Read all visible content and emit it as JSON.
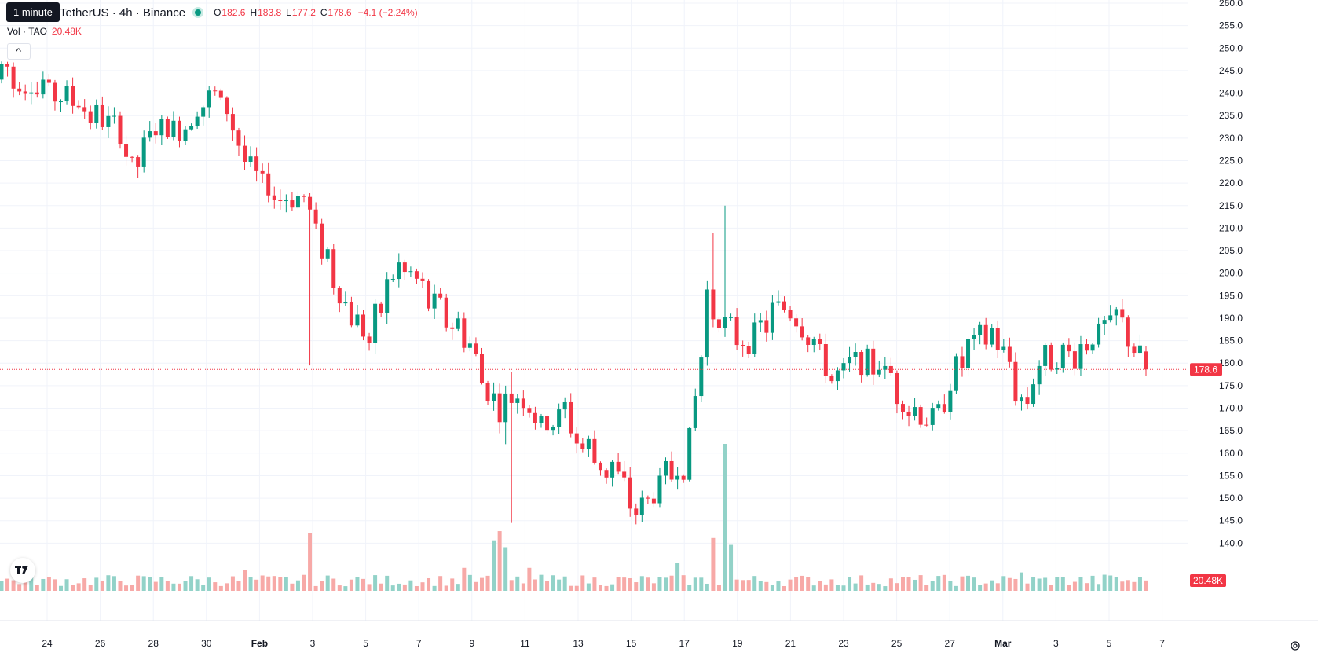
{
  "legend": {
    "tooltip": "1 minute",
    "symbol": "TetherUS · 4h · Binance",
    "o_label": "O",
    "o_value": "182.6",
    "h_label": "H",
    "h_value": "183.8",
    "l_label": "L",
    "l_value": "177.2",
    "c_label": "C",
    "c_value": "178.6",
    "change": "−4.1 (−2.24%)"
  },
  "volume_legend": {
    "label": "Vol · TAO",
    "value": "20.48K"
  },
  "icons": {
    "collapse": "chevron-up-icon",
    "logo": "tradingview-logo",
    "settings": "gear-icon"
  },
  "colors": {
    "up": "#089981",
    "down": "#f23645",
    "vol_up": "#92d2c8",
    "vol_down": "#f7a9a7",
    "grid": "#f0f3fa",
    "axis_text": "#131722"
  },
  "chart_data": {
    "type": "candlestick",
    "interval": "4h",
    "y_ticks": [
      "260.0",
      "255.0",
      "250.0",
      "245.0",
      "240.0",
      "235.0",
      "230.0",
      "225.0",
      "220.0",
      "215.0",
      "210.0",
      "205.0",
      "200.0",
      "195.0",
      "190.0",
      "185.0",
      "180.0",
      "175.0",
      "170.0",
      "165.0",
      "160.0",
      "155.0",
      "150.0",
      "145.0",
      "140.0"
    ],
    "ylim": [
      135,
      260
    ],
    "x_ticks": [
      "24",
      "26",
      "28",
      "30",
      "Feb",
      "3",
      "5",
      "7",
      "9",
      "11",
      "13",
      "15",
      "17",
      "19",
      "21",
      "23",
      "25",
      "27",
      "Mar",
      "3",
      "5",
      "7"
    ],
    "last_price_label": "178.6",
    "last_price": 178.6,
    "last_volume_label": "20.48K",
    "volume_peak": 64,
    "anchors": [
      [
        0,
        243,
        245.7
      ],
      [
        6,
        238.5,
        244
      ],
      [
        12,
        238,
        241
      ],
      [
        20,
        233,
        229
      ],
      [
        22,
        222,
        226
      ],
      [
        26,
        234,
        230
      ],
      [
        30,
        233,
        230
      ],
      [
        34,
        237,
        241
      ],
      [
        38,
        238,
        236
      ],
      [
        40,
        232,
        229
      ],
      [
        43,
        220,
        221
      ],
      [
        49,
        217,
        217
      ],
      [
        52,
        213,
        212
      ],
      [
        55,
        205,
        200
      ],
      [
        58,
        190,
        193
      ],
      [
        62,
        188,
        186
      ],
      [
        66,
        201,
        200
      ],
      [
        70,
        196,
        197
      ],
      [
        74,
        193,
        192
      ],
      [
        78,
        186,
        185
      ],
      [
        82,
        176,
        172
      ],
      [
        84,
        167,
        170
      ],
      [
        87,
        174,
        175
      ],
      [
        91,
        165,
        167
      ],
      [
        95,
        168,
        169
      ],
      [
        99,
        161,
        160
      ],
      [
        103,
        156,
        156
      ],
      [
        106,
        150,
        149
      ],
      [
        109,
        147,
        149
      ],
      [
        112,
        157,
        156
      ],
      [
        115,
        158,
        155
      ],
      [
        117,
        167,
        175
      ],
      [
        119,
        192,
        198
      ],
      [
        122,
        187,
        189
      ],
      [
        126,
        184,
        186
      ],
      [
        129,
        188,
        190
      ],
      [
        132,
        196,
        192
      ],
      [
        136,
        185,
        186
      ],
      [
        139,
        180,
        179
      ],
      [
        141,
        176,
        176
      ],
      [
        144,
        180,
        181
      ],
      [
        148,
        181,
        179
      ],
      [
        151,
        175,
        172
      ],
      [
        154,
        168,
        168
      ],
      [
        158,
        167,
        170
      ],
      [
        161,
        178,
        181
      ],
      [
        165,
        186,
        186
      ],
      [
        168,
        187,
        182
      ],
      [
        170,
        178,
        177
      ],
      [
        172,
        172,
        168
      ],
      [
        175,
        180,
        183
      ],
      [
        178,
        183,
        180
      ],
      [
        181,
        181,
        180
      ],
      [
        184,
        188,
        185
      ],
      [
        186,
        187,
        188
      ],
      [
        188,
        190,
        189
      ],
      [
        191,
        185,
        183
      ],
      [
        193,
        180,
        179
      ]
    ],
    "volume_spikes": [
      [
        41,
        9
      ],
      [
        52,
        25
      ],
      [
        78,
        10
      ],
      [
        83,
        22
      ],
      [
        84,
        26
      ],
      [
        85,
        19
      ],
      [
        89,
        10
      ],
      [
        114,
        12
      ],
      [
        120,
        23
      ],
      [
        122,
        64
      ],
      [
        123,
        20
      ],
      [
        172,
        8
      ],
      [
        186,
        7
      ]
    ],
    "shadow_spikes": [
      [
        52,
        204,
        179.5
      ],
      [
        85,
        175,
        162
      ],
      [
        86,
        178,
        144.5
      ],
      [
        120,
        209,
        196
      ],
      [
        122,
        215,
        188
      ]
    ]
  }
}
